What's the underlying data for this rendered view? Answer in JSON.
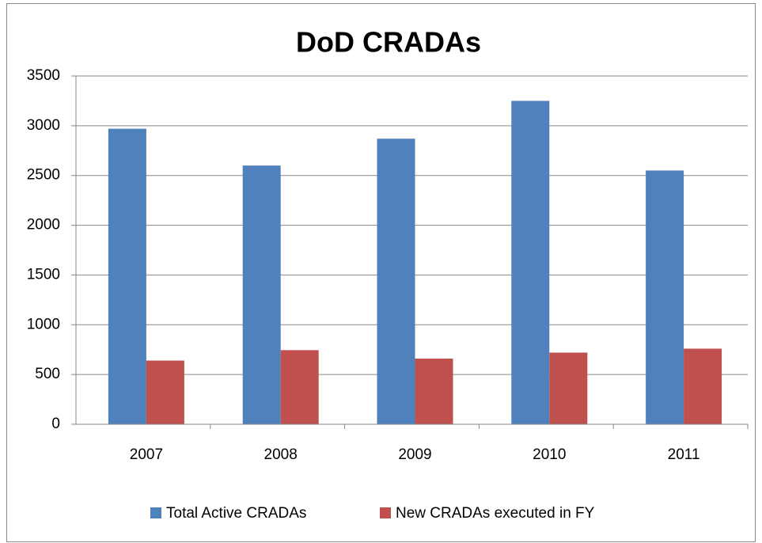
{
  "chart_data": {
    "type": "bar",
    "title": "DoD CRADAs",
    "categories": [
      "2007",
      "2008",
      "2009",
      "2010",
      "2011"
    ],
    "series": [
      {
        "name": "Total Active CRADAs",
        "color": "#4f81bd",
        "values": [
          2970,
          2600,
          2870,
          3250,
          2550
        ]
      },
      {
        "name": "New CRADAs executed in FY",
        "color": "#c0504d",
        "values": [
          640,
          745,
          660,
          720,
          760
        ]
      }
    ],
    "ylim": [
      0,
      3500
    ],
    "yticks": [
      0,
      500,
      1000,
      1500,
      2000,
      2500,
      3000,
      3500
    ],
    "grid": true,
    "legend": "bottom"
  }
}
